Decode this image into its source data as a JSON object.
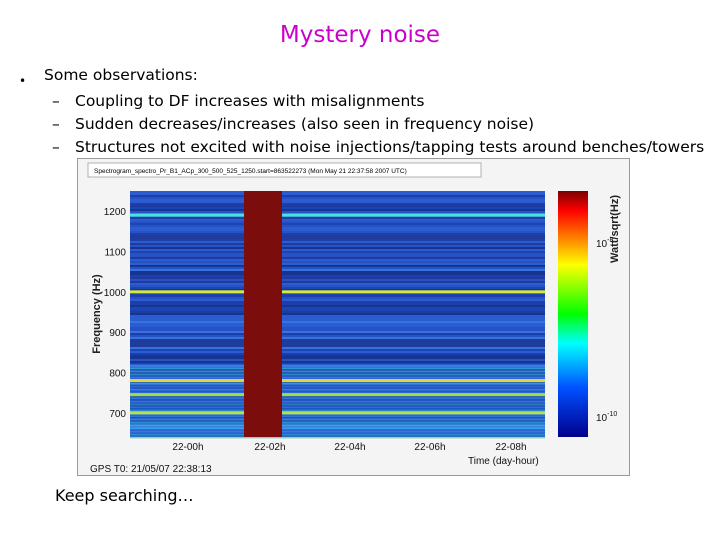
{
  "slide": {
    "title": "Mystery noise",
    "bullet_marker": "•",
    "observations_label": "Some observations:",
    "items": [
      "Coupling to DF increases with misalignments",
      "Sudden decreases/increases (also seen in frequency noise)",
      "Structures not excited with noise injections/tapping tests around benches/towers"
    ],
    "dash": "–",
    "footer": "Keep searching…"
  },
  "chart_data": {
    "type": "heatmap",
    "title": "Spectrogram_spectro_Pr_B1_ACp_300_500_525_1250.start=863522273 (Mon May 21 22:37:58 2007 UTC)",
    "ylabel": "Frequency (Hz)",
    "xlabel": "Time (day-hour)",
    "gps_label": "GPS T0: 21/05/07 22:38:13",
    "yticks": [
      1200,
      1100,
      1000,
      900,
      800,
      700
    ],
    "xticks": [
      "22-00h",
      "22-02h",
      "22-04h",
      "22-06h",
      "22-08h"
    ],
    "colorbar_label": "Watt/sqrt(Hz)",
    "colorbar_ticks": [
      "10^-8",
      "10^-10"
    ],
    "ylim": [
      640,
      1250
    ],
    "colorscale": [
      "#7a0000",
      "#ff0000",
      "#ffff00",
      "#00ff00",
      "#00ffff",
      "#0050ff",
      "#00008c"
    ],
    "lines_hz": [
      1000,
      780,
      745,
      700,
      1190
    ],
    "gap_band": "22-02h"
  }
}
